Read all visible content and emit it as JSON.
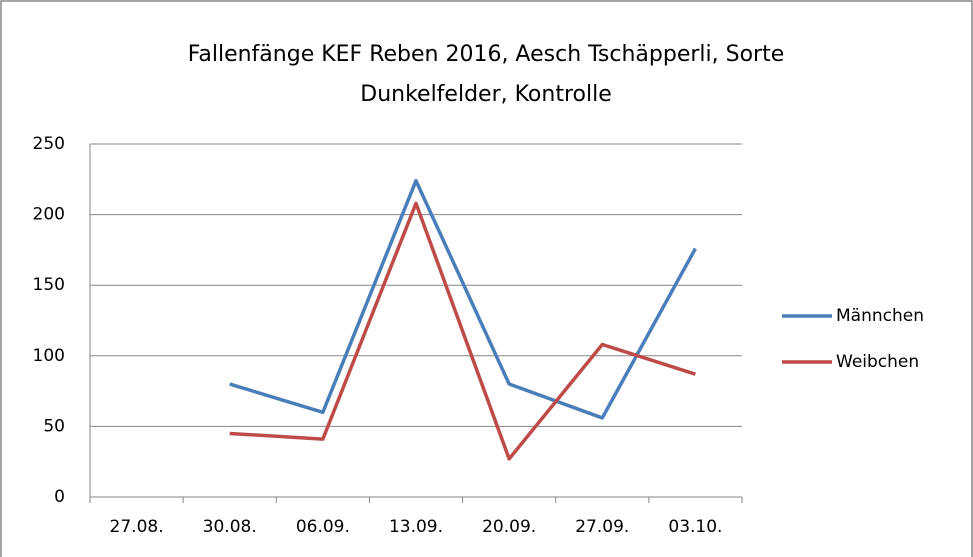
{
  "chart_data": {
    "type": "line",
    "title": [
      "Fallenfänge KEF Reben 2016, Aesch Tschäpperli, Sorte",
      "Dunkelfelder, Kontrolle"
    ],
    "categories": [
      "27.08.",
      "30.08.",
      "06.09.",
      "13.09.",
      "20.09.",
      "27.09.",
      "03.10."
    ],
    "series": [
      {
        "name": "Männchen",
        "color": "#4a7ebb",
        "values": [
          null,
          80,
          60,
          224,
          80,
          56,
          176
        ]
      },
      {
        "name": "Weibchen",
        "color": "#be4b48",
        "values": [
          null,
          45,
          41,
          208,
          27,
          108,
          87
        ]
      }
    ],
    "ylim": [
      0,
      250
    ],
    "yticks": [
      0,
      50,
      100,
      150,
      200,
      250
    ],
    "grid": true,
    "legend": "right"
  }
}
